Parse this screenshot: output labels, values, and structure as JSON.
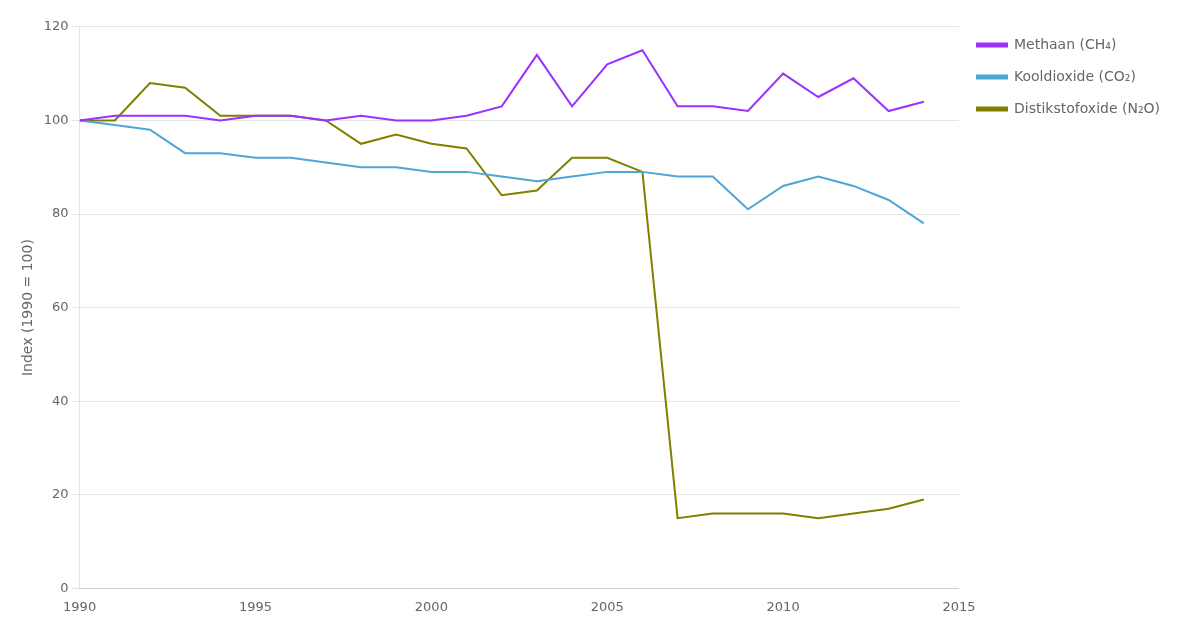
{
  "chart_data": {
    "type": "line",
    "y_label": "Index (1990 = 100)",
    "x": [
      1990,
      1991,
      1992,
      1993,
      1994,
      1995,
      1996,
      1997,
      1998,
      1999,
      2000,
      2001,
      2002,
      2003,
      2004,
      2005,
      2006,
      2007,
      2008,
      2009,
      2010,
      2011,
      2012,
      2013,
      2014
    ],
    "series": [
      {
        "name": "Methaan (CH₄)",
        "color": "#9B30FF",
        "values": [
          100,
          101,
          101,
          101,
          100,
          101,
          101,
          100,
          101,
          100,
          100,
          101,
          103,
          114,
          103,
          112,
          115,
          103,
          103,
          102,
          110,
          105,
          109,
          102,
          104
        ]
      },
      {
        "name": "Kooldioxide (CO₂)",
        "color": "#4da6d4",
        "values": [
          100,
          99,
          98,
          93,
          93,
          92,
          92,
          91,
          90,
          90,
          89,
          89,
          88,
          87,
          88,
          89,
          89,
          88,
          88,
          81,
          86,
          88,
          86,
          83,
          78
        ]
      },
      {
        "name": "Distikstofoxide (N₂O)",
        "color": "#808000",
        "values": [
          100,
          100,
          108,
          107,
          101,
          101,
          101,
          100,
          95,
          97,
          95,
          94,
          84,
          85,
          92,
          92,
          89,
          15,
          16,
          16,
          16,
          15,
          16,
          17,
          19
        ]
      }
    ],
    "xlim": [
      1990,
      2015
    ],
    "xticks": [
      1990,
      1995,
      2000,
      2005,
      2010,
      2015
    ],
    "ylim": [
      0,
      120
    ],
    "yticks": [
      0,
      20,
      40,
      60,
      80,
      100,
      120
    ],
    "grid": true,
    "legend": "right"
  }
}
